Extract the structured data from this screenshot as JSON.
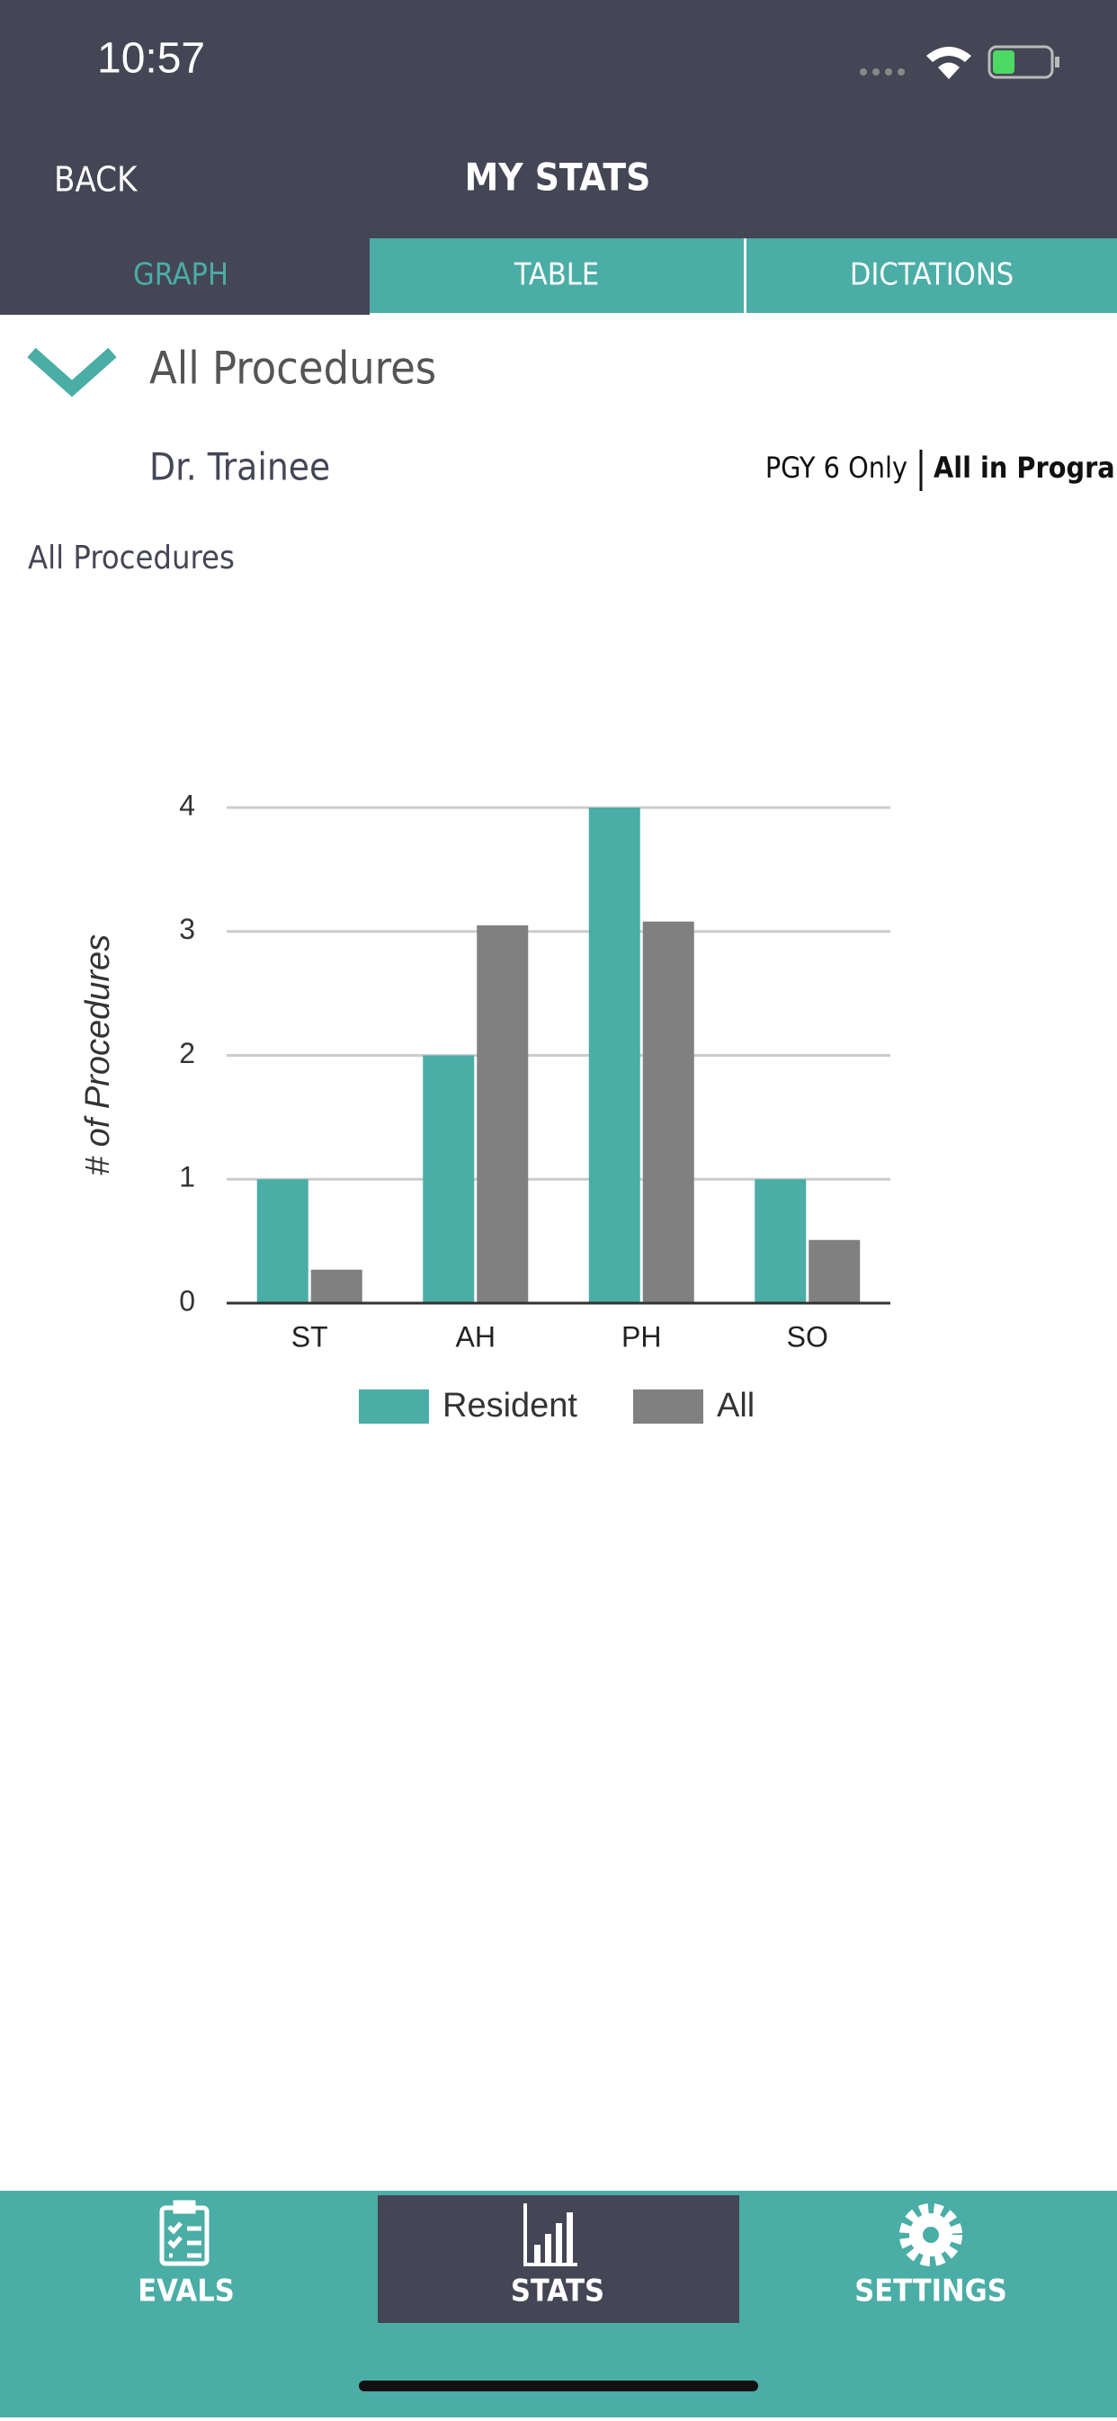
{
  "status_bar": {
    "time": "10:57"
  },
  "header": {
    "back": "BACK",
    "title": "MY STATS"
  },
  "tabs": [
    "GRAPH",
    "TABLE",
    "DICTATIONS"
  ],
  "filter": {
    "selection": "All Procedures",
    "person": "Dr. Trainee",
    "scope_options": [
      "PGY 6 Only",
      "All in Program"
    ]
  },
  "chart_data": {
    "type": "bar",
    "title": "All Procedures",
    "y_label": "# of Procedures",
    "categories": [
      "ST",
      "AH",
      "PH",
      "SO"
    ],
    "series": [
      {
        "name": "Resident",
        "color": "#4aada6",
        "values": [
          1,
          2,
          4,
          1
        ]
      },
      {
        "name": "All",
        "color": "#808080",
        "values": [
          0.27,
          3.05,
          3.08,
          0.51
        ]
      }
    ],
    "ylim": [
      0,
      4
    ],
    "yticks": [
      0,
      1,
      2,
      3,
      4
    ],
    "grid": true
  },
  "bottom_nav": [
    "EVALS",
    "STATS",
    "SETTINGS"
  ]
}
